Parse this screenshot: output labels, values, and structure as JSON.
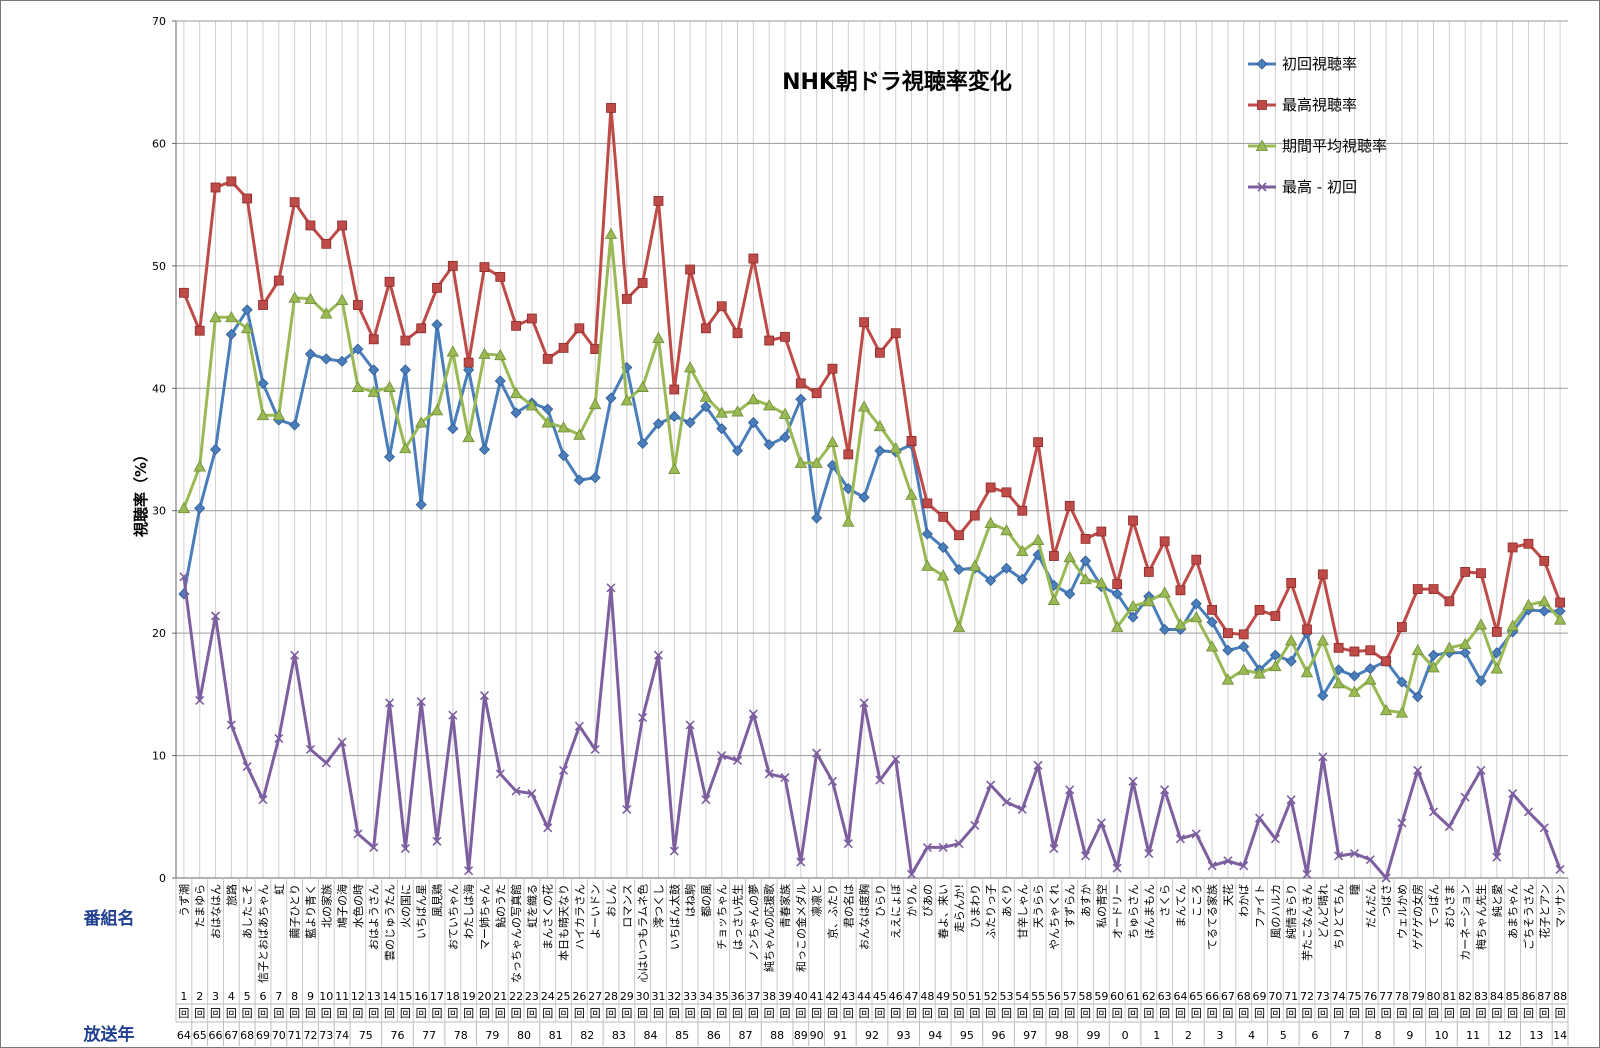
{
  "chart_data": {
    "type": "line",
    "title": "NHK朝ドラ視聴率変化",
    "ylabel": "視聴率（%）",
    "ylim": [
      0,
      70
    ],
    "yticks": [
      0,
      10,
      20,
      30,
      40,
      50,
      60,
      70
    ],
    "grid": true,
    "legend_position": "top-right",
    "row_header_program": "番組名",
    "row_header_year": "放送年",
    "x": [
      "1",
      "2",
      "3",
      "4",
      "5",
      "6",
      "7",
      "8",
      "9",
      "10",
      "11",
      "12",
      "13",
      "14",
      "15",
      "16",
      "17",
      "18",
      "19",
      "20",
      "21",
      "22",
      "23",
      "24",
      "25",
      "26",
      "27",
      "28",
      "29",
      "30",
      "31",
      "32",
      "33",
      "34",
      "35",
      "36",
      "37",
      "38",
      "39",
      "40",
      "41",
      "42",
      "43",
      "44",
      "45",
      "46",
      "47",
      "48",
      "49",
      "50",
      "51",
      "52",
      "53",
      "54",
      "55",
      "56",
      "57",
      "58",
      "59",
      "60",
      "61",
      "62",
      "63",
      "64",
      "65",
      "66",
      "67",
      "68",
      "69",
      "70",
      "71",
      "72",
      "73",
      "74",
      "75",
      "76",
      "77",
      "78",
      "79",
      "80",
      "81",
      "82",
      "83",
      "84",
      "85",
      "86",
      "87",
      "88"
    ],
    "episode_suffix": "回",
    "categories": [
      "うず潮",
      "たまゆら",
      "おはなはん",
      "旅路",
      "あしたこそ",
      "信子とおばあちゃん",
      "虹",
      "繭子ひとり",
      "藍より青く",
      "北の家族",
      "鳩子の海",
      "水色の時",
      "おはようさん",
      "雲のじゅうたん",
      "火の国に",
      "いちばん星",
      "風見鶏",
      "おていちゃん",
      "わたしは海",
      "マー姉ちゃん",
      "鮎のうた",
      "なっちゃんの写真館",
      "虹を織る",
      "まんさくの花",
      "本日も晴天なり",
      "ハイカラさん",
      "よーいドン",
      "おしん",
      "ロマンス",
      "心はいつもラムネ色",
      "澪つくし",
      "いちばん太鼓",
      "はね駒",
      "都の風",
      "チョッちゃん",
      "はっさい先生",
      "ノンちゃんの夢",
      "純ちゃんの応援歌",
      "青春家族",
      "和っこの金メダル",
      "凛凛と",
      "京、ふたり",
      "君の名は",
      "おんなは度胸",
      "ひらり",
      "ええにょぼ",
      "かりん",
      "ぴあの",
      "春よ、来い",
      "走らんか!",
      "ひまわり",
      "ふたりっ子",
      "あぐり",
      "甘辛しゃん",
      "天うらら",
      "やんちゃくれ",
      "すずらん",
      "あすか",
      "私の青空",
      "オードリー",
      "ちゅらさん",
      "ほんまもん",
      "さくら",
      "まんてん",
      "こころ",
      "てるてる家族",
      "天花",
      "わかば",
      "ファイト",
      "風のハルカ",
      "純情きらり",
      "芋たこなんきん",
      "どんど晴れ",
      "ちりとてちん",
      "瞳",
      "だんだん",
      "つばさ",
      "ウェルかめ",
      "ゲゲゲの女房",
      "てっぱん",
      "おひさま",
      "カーネーション",
      "梅ちゃん先生",
      "純と愛",
      "あまちゃん",
      "ごちそうさん",
      "花子とアン",
      "マッサン"
    ],
    "years": [
      {
        "label": "64",
        "from": 1,
        "to": 1
      },
      {
        "label": "65",
        "from": 2,
        "to": 2
      },
      {
        "label": "66",
        "from": 3,
        "to": 3
      },
      {
        "label": "67",
        "from": 4,
        "to": 4
      },
      {
        "label": "68",
        "from": 5,
        "to": 5
      },
      {
        "label": "69",
        "from": 6,
        "to": 6
      },
      {
        "label": "70",
        "from": 7,
        "to": 7
      },
      {
        "label": "71",
        "from": 8,
        "to": 8
      },
      {
        "label": "72",
        "from": 9,
        "to": 9
      },
      {
        "label": "73",
        "from": 10,
        "to": 10
      },
      {
        "label": "74",
        "from": 11,
        "to": 11
      },
      {
        "label": "75",
        "from": 12,
        "to": 13
      },
      {
        "label": "76",
        "from": 14,
        "to": 15
      },
      {
        "label": "77",
        "from": 16,
        "to": 17
      },
      {
        "label": "78",
        "from": 18,
        "to": 19
      },
      {
        "label": "79",
        "from": 20,
        "to": 21
      },
      {
        "label": "80",
        "from": 22,
        "to": 23
      },
      {
        "label": "81",
        "from": 24,
        "to": 25
      },
      {
        "label": "82",
        "from": 26,
        "to": 27
      },
      {
        "label": "83",
        "from": 28,
        "to": 29
      },
      {
        "label": "84",
        "from": 30,
        "to": 31
      },
      {
        "label": "85",
        "from": 32,
        "to": 33
      },
      {
        "label": "86",
        "from": 34,
        "to": 35
      },
      {
        "label": "87",
        "from": 36,
        "to": 37
      },
      {
        "label": "88",
        "from": 38,
        "to": 39
      },
      {
        "label": "89",
        "from": 40,
        "to": 40
      },
      {
        "label": "90",
        "from": 41,
        "to": 41
      },
      {
        "label": "91",
        "from": 42,
        "to": 43
      },
      {
        "label": "92",
        "from": 44,
        "to": 45
      },
      {
        "label": "93",
        "from": 46,
        "to": 47
      },
      {
        "label": "94",
        "from": 48,
        "to": 49
      },
      {
        "label": "95",
        "from": 50,
        "to": 51
      },
      {
        "label": "96",
        "from": 52,
        "to": 53
      },
      {
        "label": "97",
        "from": 54,
        "to": 55
      },
      {
        "label": "98",
        "from": 56,
        "to": 57
      },
      {
        "label": "99",
        "from": 58,
        "to": 59
      },
      {
        "label": "0",
        "from": 60,
        "to": 61
      },
      {
        "label": "1",
        "from": 62,
        "to": 63
      },
      {
        "label": "2",
        "from": 64,
        "to": 65
      },
      {
        "label": "3",
        "from": 66,
        "to": 67
      },
      {
        "label": "4",
        "from": 68,
        "to": 69
      },
      {
        "label": "5",
        "from": 70,
        "to": 71
      },
      {
        "label": "6",
        "from": 72,
        "to": 73
      },
      {
        "label": "7",
        "from": 74,
        "to": 75
      },
      {
        "label": "8",
        "from": 76,
        "to": 77
      },
      {
        "label": "9",
        "from": 78,
        "to": 79
      },
      {
        "label": "10",
        "from": 80,
        "to": 81
      },
      {
        "label": "11",
        "from": 82,
        "to": 83
      },
      {
        "label": "12",
        "from": 84,
        "to": 85
      },
      {
        "label": "13",
        "from": 86,
        "to": 87
      },
      {
        "label": "14",
        "from": 88,
        "to": 88
      }
    ],
    "series": [
      {
        "name": "初回視聴率",
        "color": "#4a7ebb",
        "marker": "diamond",
        "values": [
          23.2,
          30.2,
          35.0,
          44.4,
          46.4,
          40.4,
          37.4,
          37.0,
          42.8,
          42.4,
          42.2,
          43.2,
          41.5,
          34.4,
          41.5,
          30.5,
          45.2,
          36.7,
          41.5,
          35.0,
          40.6,
          38.0,
          38.8,
          38.3,
          34.5,
          32.5,
          32.7,
          39.2,
          41.7,
          35.5,
          37.1,
          37.7,
          37.2,
          38.5,
          36.7,
          34.9,
          37.2,
          35.4,
          36.0,
          39.1,
          29.4,
          33.7,
          31.8,
          31.1,
          34.9,
          34.8,
          35.4,
          28.1,
          27.0,
          25.2,
          25.3,
          24.3,
          25.3,
          24.4,
          26.4,
          23.9,
          23.2,
          25.9,
          23.8,
          23.2,
          21.3,
          23.0,
          20.3,
          20.3,
          22.4,
          20.9,
          18.6,
          18.9,
          17.0,
          18.2,
          17.7,
          20.0,
          14.9,
          17.0,
          16.5,
          17.1,
          17.7,
          16.0,
          14.8,
          18.2,
          18.4,
          18.4,
          16.1,
          18.4,
          20.1,
          21.9,
          21.8,
          21.8
        ]
      },
      {
        "name": "最高視聴率",
        "color": "#be4b48",
        "marker": "square",
        "values": [
          47.8,
          44.7,
          56.4,
          56.9,
          55.5,
          46.8,
          48.8,
          55.2,
          53.3,
          51.8,
          53.3,
          46.8,
          44.0,
          48.7,
          43.9,
          44.9,
          48.2,
          50.0,
          42.1,
          49.9,
          49.1,
          45.1,
          45.7,
          42.4,
          43.3,
          44.9,
          43.2,
          62.9,
          47.3,
          48.6,
          55.3,
          39.9,
          49.7,
          44.9,
          46.7,
          44.5,
          50.6,
          43.9,
          44.2,
          40.4,
          39.6,
          41.6,
          34.6,
          45.4,
          42.9,
          44.5,
          35.7,
          30.6,
          29.5,
          28.0,
          29.6,
          31.9,
          31.5,
          30.0,
          35.6,
          26.3,
          30.4,
          27.7,
          28.3,
          24.0,
          29.2,
          25.0,
          27.5,
          23.5,
          26.0,
          21.9,
          20.0,
          19.9,
          21.9,
          21.4,
          24.1,
          20.3,
          24.8,
          18.8,
          18.5,
          18.6,
          17.7,
          20.5,
          23.6,
          23.6,
          22.6,
          25.0,
          24.9,
          20.1,
          27.0,
          27.3,
          25.9,
          22.5
        ]
      },
      {
        "name": "期間平均視聴率",
        "color": "#98b954",
        "marker": "triangle",
        "values": [
          30.2,
          33.6,
          45.8,
          45.8,
          44.9,
          37.8,
          37.8,
          47.4,
          47.3,
          46.1,
          47.2,
          40.1,
          39.7,
          40.1,
          35.1,
          37.2,
          38.2,
          43.0,
          36.0,
          42.8,
          42.7,
          39.6,
          38.6,
          37.2,
          36.8,
          36.2,
          38.7,
          52.6,
          39.0,
          40.1,
          44.1,
          33.4,
          41.7,
          39.3,
          38.0,
          38.1,
          39.1,
          38.6,
          37.9,
          33.9,
          33.9,
          35.6,
          29.1,
          38.5,
          36.9,
          35.1,
          31.3,
          25.5,
          24.7,
          20.5,
          25.5,
          29.0,
          28.4,
          26.7,
          27.6,
          22.7,
          26.2,
          24.4,
          24.1,
          20.5,
          22.2,
          22.6,
          23.3,
          20.7,
          21.3,
          18.9,
          16.2,
          17.0,
          16.7,
          17.3,
          19.4,
          16.8,
          19.4,
          15.9,
          15.2,
          16.2,
          13.7,
          13.5,
          18.6,
          17.2,
          18.8,
          19.1,
          20.7,
          17.1,
          20.6,
          22.3,
          22.6,
          21.1
        ]
      },
      {
        "name": "最高 - 初回",
        "color": "#7d5fa0",
        "marker": "x",
        "values": [
          24.6,
          14.5,
          21.4,
          12.5,
          9.1,
          6.4,
          11.4,
          18.2,
          10.5,
          9.4,
          11.1,
          3.6,
          2.5,
          14.3,
          2.4,
          14.4,
          3.0,
          13.3,
          0.6,
          14.9,
          8.5,
          7.1,
          6.9,
          4.1,
          8.8,
          12.4,
          10.5,
          23.7,
          5.6,
          13.1,
          18.2,
          2.2,
          12.5,
          6.4,
          10.0,
          9.6,
          13.4,
          8.5,
          8.2,
          1.3,
          10.2,
          7.9,
          2.8,
          14.3,
          8.0,
          9.7,
          0.3,
          2.5,
          2.5,
          2.8,
          4.3,
          7.6,
          6.2,
          5.6,
          9.2,
          2.4,
          7.2,
          1.8,
          4.5,
          0.8,
          7.9,
          2.0,
          7.2,
          3.2,
          3.6,
          1.0,
          1.4,
          1.0,
          4.9,
          3.2,
          6.4,
          0.3,
          9.9,
          1.8,
          2.0,
          1.5,
          0.0,
          4.5,
          8.8,
          5.4,
          4.2,
          6.6,
          8.8,
          1.7,
          6.9,
          5.4,
          4.1,
          0.7
        ]
      }
    ]
  }
}
